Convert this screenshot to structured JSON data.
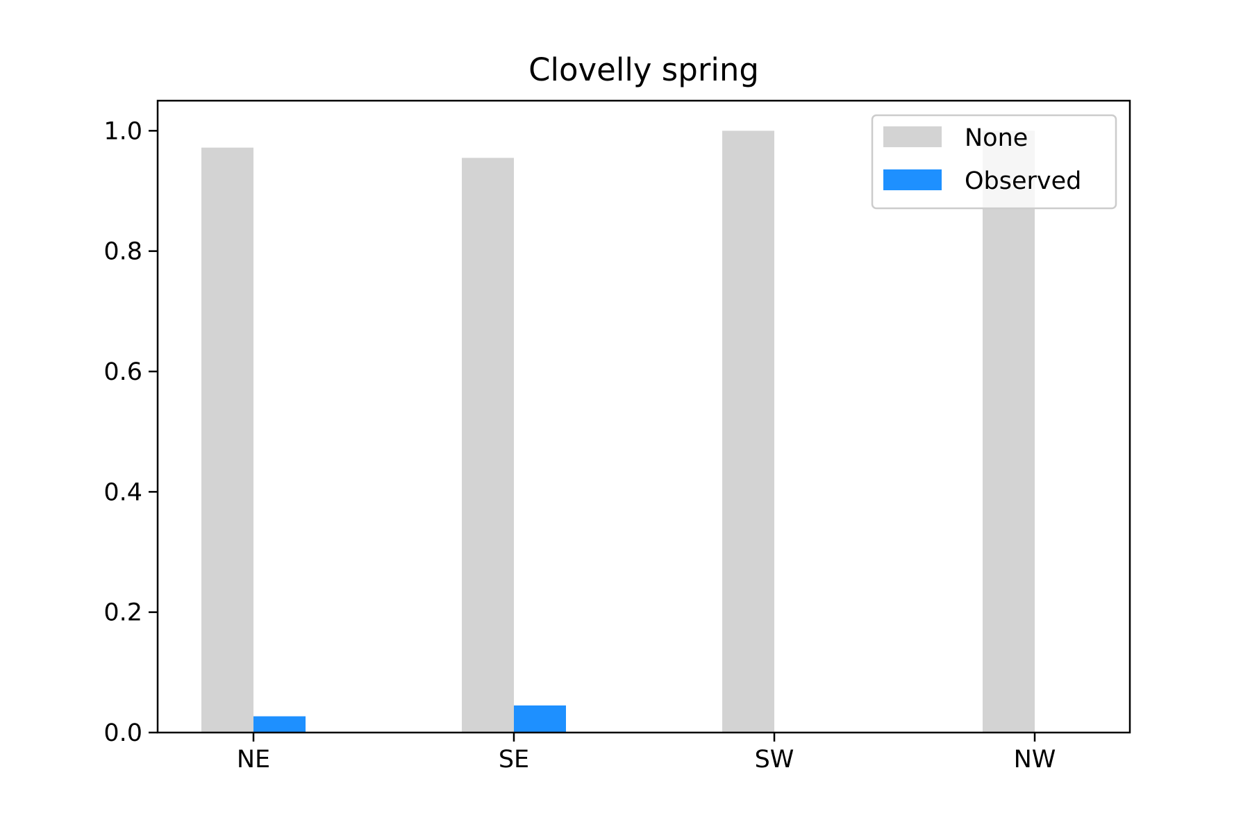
{
  "chart_data": {
    "type": "bar",
    "title": "Clovelly spring",
    "xlabel": "",
    "ylabel": "",
    "categories": [
      "NE",
      "SE",
      "SW",
      "NW"
    ],
    "series": [
      {
        "name": "None",
        "values": [
          0.972,
          0.955,
          1.0,
          1.0
        ],
        "color": "#d3d3d3"
      },
      {
        "name": "Observed",
        "values": [
          0.027,
          0.045,
          0.0,
          0.0
        ],
        "color": "#1e90ff"
      }
    ],
    "ylim": [
      0,
      1.05
    ],
    "yticks": [
      0.0,
      0.2,
      0.4,
      0.6,
      0.8,
      1.0
    ],
    "ytick_labels": [
      "0.0",
      "0.2",
      "0.4",
      "0.6",
      "0.8",
      "1.0"
    ],
    "grid": false,
    "legend_position": "top-right"
  }
}
